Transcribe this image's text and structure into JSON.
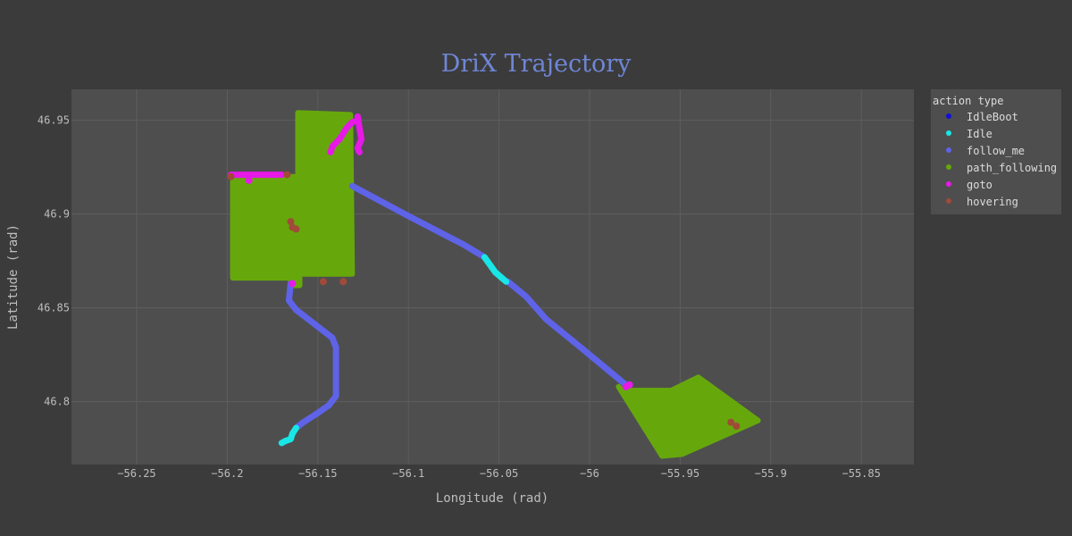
{
  "chart_data": {
    "type": "scatter",
    "title": "DriX Trajectory",
    "xlabel": "Longitude (rad)",
    "ylabel": "Latitude (rad)",
    "xlim": [
      -56.286,
      -55.821
    ],
    "ylim": [
      46.7665,
      46.9665
    ],
    "x_ticks": [
      -56.25,
      -56.2,
      -56.15,
      -56.1,
      -56.05,
      -56,
      -55.95,
      -55.9,
      -55.85
    ],
    "x_tick_labels": [
      "−56.25",
      "−56.2",
      "−56.15",
      "−56.1",
      "−56.05",
      "−56",
      "−55.95",
      "−55.9",
      "−55.85"
    ],
    "y_ticks": [
      46.8,
      46.85,
      46.9,
      46.95
    ],
    "y_tick_labels": [
      "46.8",
      "46.85",
      "46.9",
      "46.95"
    ],
    "grid": true,
    "legend": {
      "title": "action type",
      "placement": "right",
      "entries": [
        "IdleBoot",
        "Idle",
        "follow_me",
        "path_following",
        "goto",
        "hovering"
      ]
    },
    "colors": {
      "IdleBoot": "#1010d8",
      "Idle": "#19e6e6",
      "follow_me": "#5f63e8",
      "path_following": "#66a80c",
      "goto": "#e619e6",
      "hovering": "#a04a3a"
    },
    "series": [
      {
        "name": "path_following",
        "areas": [
          [
            [
              -56.161,
              46.954
            ],
            [
              -56.132,
              46.953
            ],
            [
              -56.131,
              46.868
            ],
            [
              -56.161,
              46.868
            ]
          ],
          [
            [
              -56.197,
              46.92
            ],
            [
              -56.161,
              46.92
            ],
            [
              -56.161,
              46.866
            ],
            [
              -56.197,
              46.866
            ]
          ],
          [
            [
              -56.165,
              46.866
            ],
            [
              -56.16,
              46.866
            ],
            [
              -56.16,
              46.862
            ],
            [
              -56.165,
              46.862
            ]
          ],
          [
            [
              -55.982,
              46.806
            ],
            [
              -55.955,
              46.806
            ],
            [
              -55.94,
              46.813
            ],
            [
              -55.907,
              46.79
            ],
            [
              -55.949,
              46.772
            ],
            [
              -55.96,
              46.771
            ],
            [
              -55.984,
              46.808
            ]
          ]
        ]
      },
      {
        "name": "follow_me",
        "lines": [
          [
            [
              -56.131,
              46.915
            ],
            [
              -56.1,
              46.899
            ],
            [
              -56.07,
              46.884
            ],
            [
              -56.058,
              46.877
            ]
          ],
          [
            [
              -56.045,
              46.864
            ],
            [
              -56.035,
              46.856
            ],
            [
              -56.024,
              46.844
            ],
            [
              -56.005,
              46.829
            ],
            [
              -55.99,
              46.817
            ],
            [
              -55.98,
              46.809
            ]
          ],
          [
            [
              -56.165,
              46.863
            ],
            [
              -56.166,
              46.854
            ],
            [
              -56.162,
              46.849
            ],
            [
              -56.15,
              46.84
            ],
            [
              -56.142,
              46.834
            ],
            [
              -56.14,
              46.829
            ],
            [
              -56.14,
              46.814
            ],
            [
              -56.14,
              46.803
            ],
            [
              -56.144,
              46.798
            ],
            [
              -56.15,
              46.794
            ],
            [
              -56.158,
              46.789
            ],
            [
              -56.162,
              46.786
            ]
          ]
        ]
      },
      {
        "name": "Idle",
        "lines": [
          [
            [
              -56.058,
              46.877
            ],
            [
              -56.052,
              46.869
            ],
            [
              -56.046,
              46.864
            ]
          ],
          [
            [
              -56.162,
              46.786
            ],
            [
              -56.164,
              46.783
            ],
            [
              -56.165,
              46.78
            ],
            [
              -56.168,
              46.779
            ],
            [
              -56.17,
              46.778
            ]
          ]
        ]
      },
      {
        "name": "goto",
        "lines": [
          [
            [
              -56.143,
              46.933
            ],
            [
              -56.142,
              46.936
            ],
            [
              -56.138,
              46.94
            ],
            [
              -56.134,
              46.946
            ],
            [
              -56.131,
              46.949
            ],
            [
              -56.128,
              46.95
            ]
          ],
          [
            [
              -56.128,
              46.952
            ],
            [
              -56.127,
              46.946
            ],
            [
              -56.126,
              46.94
            ],
            [
              -56.128,
              46.935
            ],
            [
              -56.127,
              46.933
            ]
          ],
          [
            [
              -56.198,
              46.921
            ],
            [
              -56.17,
              46.921
            ]
          ]
        ],
        "points": [
          [
            -56.188,
            46.918
          ],
          [
            -56.164,
            46.863
          ],
          [
            -55.98,
            46.808
          ],
          [
            -55.978,
            46.809
          ]
        ]
      },
      {
        "name": "hovering",
        "points": [
          [
            -56.198,
            46.92
          ],
          [
            -56.167,
            46.921
          ],
          [
            -56.165,
            46.896
          ],
          [
            -56.164,
            46.893
          ],
          [
            -56.162,
            46.892
          ],
          [
            -56.147,
            46.864
          ],
          [
            -56.136,
            46.864
          ],
          [
            -55.922,
            46.789
          ],
          [
            -55.919,
            46.787
          ]
        ]
      }
    ]
  }
}
